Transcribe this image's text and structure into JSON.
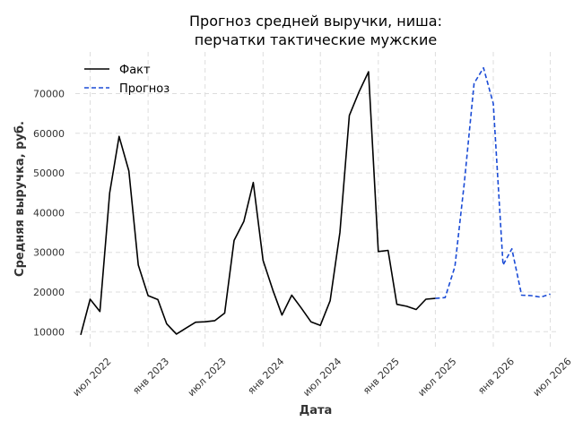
{
  "chart_data": {
    "type": "line",
    "title_lines": [
      "Прогноз средней выручки, ниша:",
      "перчатки тактические мужские"
    ],
    "xlabel": "Дата",
    "ylabel": "Средняя выручка, руб.",
    "xlim": [
      "2022-05-15",
      "2026-07-25"
    ],
    "ylim": [
      6000,
      80500
    ],
    "yticks": [
      10000,
      20000,
      30000,
      40000,
      50000,
      60000,
      70000
    ],
    "xticks": [
      {
        "date": "2022-07-01",
        "label": "июл 2022"
      },
      {
        "date": "2023-01-01",
        "label": "янв 2023"
      },
      {
        "date": "2023-07-01",
        "label": "июл 2023"
      },
      {
        "date": "2024-01-01",
        "label": "янв 2024"
      },
      {
        "date": "2024-07-01",
        "label": "июл 2024"
      },
      {
        "date": "2025-01-01",
        "label": "янв 2025"
      },
      {
        "date": "2025-07-01",
        "label": "июл 2025"
      },
      {
        "date": "2026-01-01",
        "label": "янв 2026"
      },
      {
        "date": "2026-07-01",
        "label": "июл 2026"
      }
    ],
    "grid": true,
    "legend_position": "top-left",
    "series": [
      {
        "name": "Факт",
        "color": "#000000",
        "style": "solid",
        "x": [
          "2022-06-01",
          "2022-07-01",
          "2022-08-01",
          "2022-09-01",
          "2022-10-01",
          "2022-11-01",
          "2022-12-01",
          "2023-01-01",
          "2023-02-01",
          "2023-03-01",
          "2023-04-01",
          "2023-05-01",
          "2023-06-01",
          "2023-07-01",
          "2023-08-01",
          "2023-09-01",
          "2023-10-01",
          "2023-11-01",
          "2023-12-01",
          "2024-01-01",
          "2024-02-01",
          "2024-03-01",
          "2024-04-01",
          "2024-05-01",
          "2024-06-01",
          "2024-07-01",
          "2024-08-01",
          "2024-09-01",
          "2024-10-01",
          "2024-11-01",
          "2024-12-01",
          "2025-01-01",
          "2025-02-01",
          "2025-03-01",
          "2025-04-01",
          "2025-05-01",
          "2025-06-01",
          "2025-07-01"
        ],
        "y": [
          9200,
          18200,
          15100,
          45000,
          59200,
          50500,
          26800,
          19100,
          18100,
          12000,
          9400,
          10900,
          12400,
          12500,
          12800,
          14700,
          33000,
          37800,
          47600,
          28000,
          20500,
          14200,
          19200,
          16000,
          12500,
          11600,
          17800,
          35000,
          64500,
          70500,
          75500,
          30200,
          30500,
          16900,
          16400,
          15600,
          18200,
          18400
        ]
      },
      {
        "name": "Прогноз",
        "color": "#1a4bd6",
        "style": "dashed",
        "x": [
          "2025-07-01",
          "2025-08-01",
          "2025-09-01",
          "2025-10-01",
          "2025-11-01",
          "2025-12-01",
          "2026-01-01",
          "2026-02-01",
          "2026-03-01",
          "2026-04-01",
          "2026-05-01",
          "2026-06-01",
          "2026-07-01"
        ],
        "y": [
          18400,
          18600,
          26400,
          47500,
          72600,
          76500,
          67500,
          26800,
          30900,
          19200,
          19100,
          18700,
          19500
        ]
      }
    ]
  }
}
